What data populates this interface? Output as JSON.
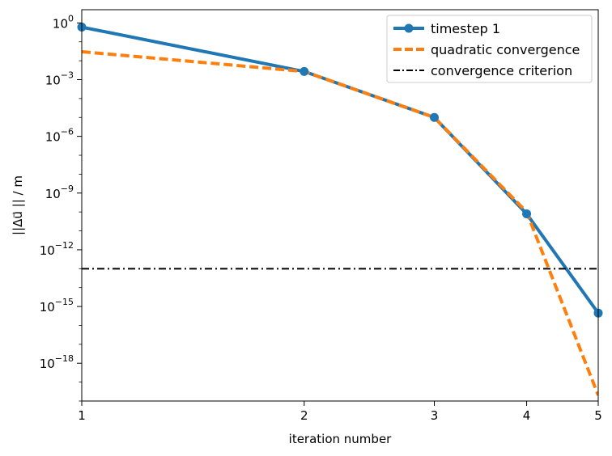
{
  "chart_data": {
    "type": "line",
    "xlabel": "iteration number",
    "ylabel": "||Δu⃗ || / m",
    "xscale": "log",
    "yscale": "log",
    "xlim": [
      1,
      5
    ],
    "ylim": [
      1e-20,
      5
    ],
    "xticks": [
      {
        "value": 1,
        "label": "1"
      },
      {
        "value": 2,
        "label": "2"
      },
      {
        "value": 3,
        "label": "3"
      },
      {
        "value": 4,
        "label": "4"
      },
      {
        "value": 5,
        "label": "5"
      }
    ],
    "yticks": [
      {
        "exp": 0,
        "base": "10",
        "sup": "0"
      },
      {
        "exp": -3,
        "base": "10",
        "sup": "−3"
      },
      {
        "exp": -6,
        "base": "10",
        "sup": "−6"
      },
      {
        "exp": -9,
        "base": "10",
        "sup": "−9"
      },
      {
        "exp": -12,
        "base": "10",
        "sup": "−12"
      },
      {
        "exp": -15,
        "base": "10",
        "sup": "−15"
      },
      {
        "exp": -18,
        "base": "10",
        "sup": "−18"
      }
    ],
    "grid": false,
    "legend_position": "top-right",
    "series": [
      {
        "name": "timestep 1",
        "style": "solid",
        "marker": "circle",
        "color": "#1f77b4",
        "x": [
          1,
          2,
          3,
          4,
          5
        ],
        "y": [
          0.6,
          0.0027,
          1e-05,
          8e-11,
          4.5e-16
        ]
      },
      {
        "name": "quadratic convergence",
        "style": "dashed",
        "marker": "none",
        "color": "#ff7f0e",
        "x": [
          1,
          2,
          3,
          4,
          5
        ],
        "y": [
          0.03,
          0.0027,
          1e-05,
          1e-10,
          2e-20
        ]
      },
      {
        "name": "convergence criterion",
        "style": "dashdot",
        "marker": "none",
        "color": "#000000",
        "x": [
          1,
          5
        ],
        "y": [
          1e-13,
          1e-13
        ]
      }
    ]
  }
}
